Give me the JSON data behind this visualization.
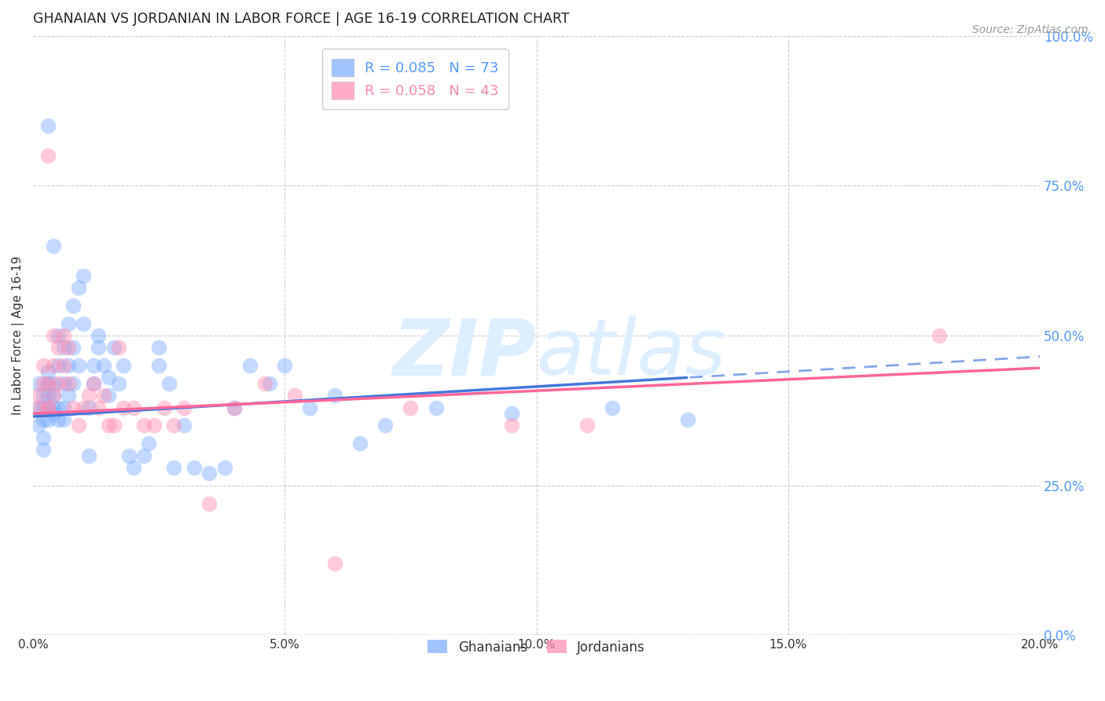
{
  "title": "GHANAIAN VS JORDANIAN IN LABOR FORCE | AGE 16-19 CORRELATION CHART",
  "source": "Source: ZipAtlas.com",
  "ylabel": "In Labor Force | Age 16-19",
  "xlim": [
    0.0,
    0.2
  ],
  "ylim": [
    0.0,
    1.0
  ],
  "xticks": [
    0.0,
    0.05,
    0.1,
    0.15,
    0.2
  ],
  "xtick_labels": [
    "0.0%",
    "5.0%",
    "10.0%",
    "15.0%",
    "20.0%"
  ],
  "yticks_right": [
    0.0,
    0.25,
    0.5,
    0.75,
    1.0
  ],
  "ytick_labels_right": [
    "0.0%",
    "25.0%",
    "50.0%",
    "75.0%",
    "100.0%"
  ],
  "ghanaian_color": "#7aacff",
  "jordanian_color": "#ff8ab0",
  "trend_blue": "#4477dd",
  "trend_pink": "#ff6699",
  "R_ghanaian": 0.085,
  "N_ghanaian": 73,
  "R_jordanian": 0.058,
  "N_jordanian": 43,
  "ghanaian_x": [
    0.001,
    0.001,
    0.001,
    0.002,
    0.002,
    0.002,
    0.002,
    0.002,
    0.003,
    0.003,
    0.003,
    0.003,
    0.003,
    0.004,
    0.004,
    0.004,
    0.004,
    0.005,
    0.005,
    0.005,
    0.005,
    0.006,
    0.006,
    0.006,
    0.006,
    0.007,
    0.007,
    0.007,
    0.008,
    0.008,
    0.008,
    0.009,
    0.009,
    0.01,
    0.01,
    0.011,
    0.011,
    0.012,
    0.012,
    0.013,
    0.013,
    0.014,
    0.015,
    0.015,
    0.016,
    0.017,
    0.018,
    0.019,
    0.02,
    0.022,
    0.023,
    0.025,
    0.027,
    0.028,
    0.03,
    0.032,
    0.035,
    0.038,
    0.04,
    0.043,
    0.047,
    0.05,
    0.055,
    0.06,
    0.065,
    0.07,
    0.08,
    0.095,
    0.115,
    0.13,
    0.003,
    0.004,
    0.025
  ],
  "ghanaian_y": [
    0.38,
    0.42,
    0.35,
    0.4,
    0.36,
    0.38,
    0.33,
    0.31,
    0.4,
    0.42,
    0.36,
    0.38,
    0.44,
    0.42,
    0.37,
    0.4,
    0.38,
    0.5,
    0.45,
    0.38,
    0.36,
    0.48,
    0.42,
    0.38,
    0.36,
    0.52,
    0.45,
    0.4,
    0.55,
    0.48,
    0.42,
    0.58,
    0.45,
    0.6,
    0.52,
    0.38,
    0.3,
    0.45,
    0.42,
    0.5,
    0.48,
    0.45,
    0.43,
    0.4,
    0.48,
    0.42,
    0.45,
    0.3,
    0.28,
    0.3,
    0.32,
    0.45,
    0.42,
    0.28,
    0.35,
    0.28,
    0.27,
    0.28,
    0.38,
    0.45,
    0.42,
    0.45,
    0.38,
    0.4,
    0.32,
    0.35,
    0.38,
    0.37,
    0.38,
    0.36,
    0.85,
    0.65,
    0.48
  ],
  "jordanian_x": [
    0.001,
    0.001,
    0.002,
    0.002,
    0.003,
    0.003,
    0.003,
    0.004,
    0.004,
    0.005,
    0.005,
    0.006,
    0.006,
    0.007,
    0.007,
    0.008,
    0.009,
    0.01,
    0.011,
    0.012,
    0.013,
    0.014,
    0.015,
    0.016,
    0.017,
    0.018,
    0.02,
    0.022,
    0.024,
    0.026,
    0.028,
    0.03,
    0.035,
    0.04,
    0.046,
    0.052,
    0.06,
    0.075,
    0.095,
    0.11,
    0.003,
    0.004,
    0.18
  ],
  "jordanian_y": [
    0.4,
    0.38,
    0.42,
    0.45,
    0.38,
    0.42,
    0.38,
    0.45,
    0.4,
    0.48,
    0.42,
    0.5,
    0.45,
    0.48,
    0.42,
    0.38,
    0.35,
    0.38,
    0.4,
    0.42,
    0.38,
    0.4,
    0.35,
    0.35,
    0.48,
    0.38,
    0.38,
    0.35,
    0.35,
    0.38,
    0.35,
    0.38,
    0.22,
    0.38,
    0.42,
    0.4,
    0.12,
    0.38,
    0.35,
    0.35,
    0.8,
    0.5,
    0.5
  ],
  "background_color": "#ffffff",
  "grid_color": "#cccccc",
  "title_color": "#222222",
  "axis_label_color": "#333333",
  "right_tick_color": "#5599ff",
  "watermark_zip": "ZIP",
  "watermark_atlas": "atlas",
  "watermark_color": "#ddeeff"
}
